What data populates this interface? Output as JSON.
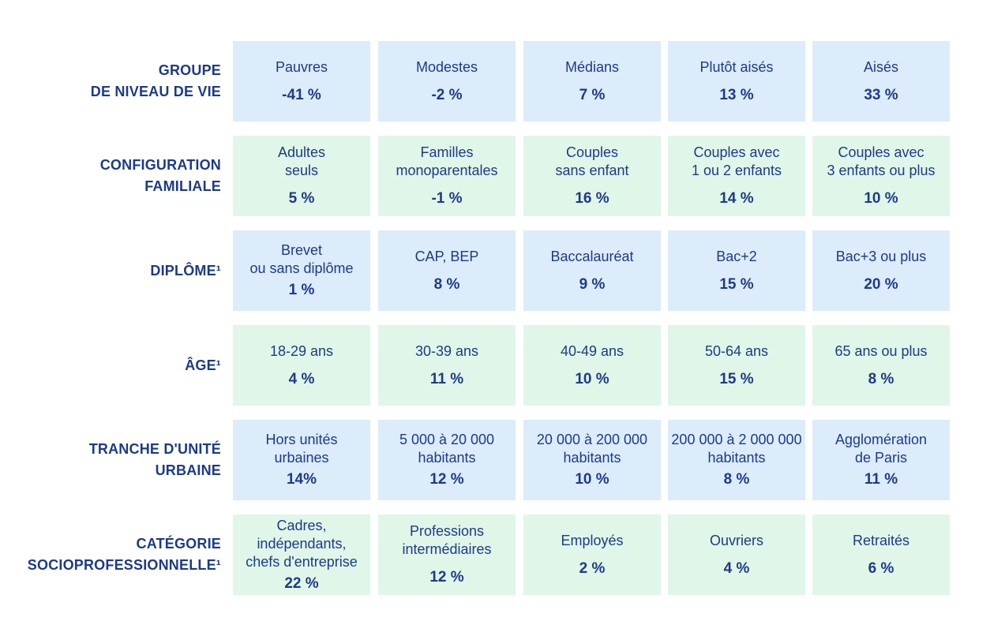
{
  "colors": {
    "text": "#1d3a8a",
    "cell_blue": "#dcecfb",
    "cell_green": "#e0f6e8"
  },
  "rows": [
    {
      "label": [
        "GROUPE",
        "DE NIVEAU DE VIE"
      ],
      "color": "blue",
      "cells": [
        {
          "label": "Pauvres",
          "value": "-41 %"
        },
        {
          "label": "Modestes",
          "value": "-2 %"
        },
        {
          "label": "Médians",
          "value": "7 %"
        },
        {
          "label": "Plutôt aisés",
          "value": "13 %"
        },
        {
          "label": "Aisés",
          "value": "33 %"
        }
      ]
    },
    {
      "label": [
        "CONFIGURATION",
        "FAMILIALE"
      ],
      "color": "green",
      "cells": [
        {
          "label": "Adultes\nseuls",
          "value": "5 %"
        },
        {
          "label": "Familles\nmonoparentales",
          "value": "-1 %"
        },
        {
          "label": "Couples\nsans enfant",
          "value": "16 %"
        },
        {
          "label": "Couples avec\n1 ou 2 enfants",
          "value": "14 %"
        },
        {
          "label": "Couples avec\n3 enfants ou plus",
          "value": "10 %"
        }
      ]
    },
    {
      "label": [
        "DIPLÔME¹"
      ],
      "color": "blue",
      "cells": [
        {
          "label": "Brevet\nou sans diplôme",
          "value": "1 %",
          "tight": true
        },
        {
          "label": "CAP, BEP",
          "value": "8 %"
        },
        {
          "label": "Baccalauréat",
          "value": "9 %"
        },
        {
          "label": "Bac+2",
          "value": "15 %"
        },
        {
          "label": "Bac+3 ou plus",
          "value": "20 %"
        }
      ]
    },
    {
      "label": [
        "ÂGE¹"
      ],
      "color": "green",
      "cells": [
        {
          "label": "18-29 ans",
          "value": "4 %"
        },
        {
          "label": "30-39 ans",
          "value": "11 %"
        },
        {
          "label": "40-49 ans",
          "value": "10 %"
        },
        {
          "label": "50-64 ans",
          "value": "15 %"
        },
        {
          "label": "65 ans ou plus",
          "value": "8 %"
        }
      ]
    },
    {
      "label": [
        "TRANCHE D'UNITÉ",
        "URBAINE"
      ],
      "color": "blue",
      "cells": [
        {
          "label": "Hors unités\nurbaines",
          "value": "14%",
          "tight": true
        },
        {
          "label": "5 000 à 20 000\nhabitants",
          "value": "12 %",
          "tight": true
        },
        {
          "label": "20 000 à 200 000\nhabitants",
          "value": "10 %",
          "tight": true
        },
        {
          "label": "200 000 à 2 000 000\nhabitants",
          "value": "8 %",
          "tight": true
        },
        {
          "label": "Agglomération\nde Paris",
          "value": "11 %",
          "tight": true
        }
      ]
    },
    {
      "label": [
        "CATÉGORIE",
        "SOCIOPROFESSIONNELLE¹"
      ],
      "color": "green",
      "cells": [
        {
          "label": "Cadres,\nindépendants,\nchefs d'entreprise",
          "value": "22 %",
          "tight": true
        },
        {
          "label": "Professions\nintermédiaires",
          "value": "12 %"
        },
        {
          "label": "Employés",
          "value": "2 %"
        },
        {
          "label": "Ouvriers",
          "value": "4 %"
        },
        {
          "label": "Retraités",
          "value": "6 %"
        }
      ]
    }
  ]
}
